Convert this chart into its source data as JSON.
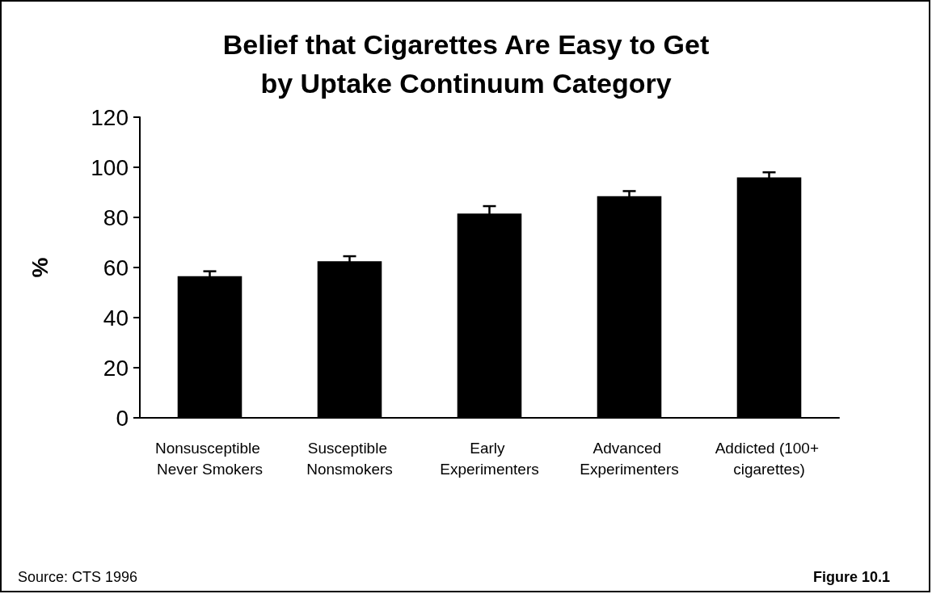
{
  "chart_data": {
    "type": "bar",
    "title": "Belief that Cigarettes Are Easy to Get\nby Uptake Continuum Category",
    "ylabel": "%",
    "categories": [
      "Nonsusceptible Never Smokers",
      "Susceptible Nonsmokers",
      "Early Experimenters",
      "Advanced Experimenters",
      "Addicted (100+ cigarettes)"
    ],
    "values": [
      56.5,
      62.5,
      81.5,
      88.5,
      96
    ],
    "errors": [
      2,
      2,
      3,
      2,
      2
    ],
    "color": "#000000",
    "ylim": [
      0,
      120
    ],
    "yticks": [
      0,
      20,
      40,
      60,
      80,
      100,
      120
    ],
    "grid": false,
    "annotations": [
      "Source: CTS 1996",
      "Figure 10.1"
    ]
  }
}
